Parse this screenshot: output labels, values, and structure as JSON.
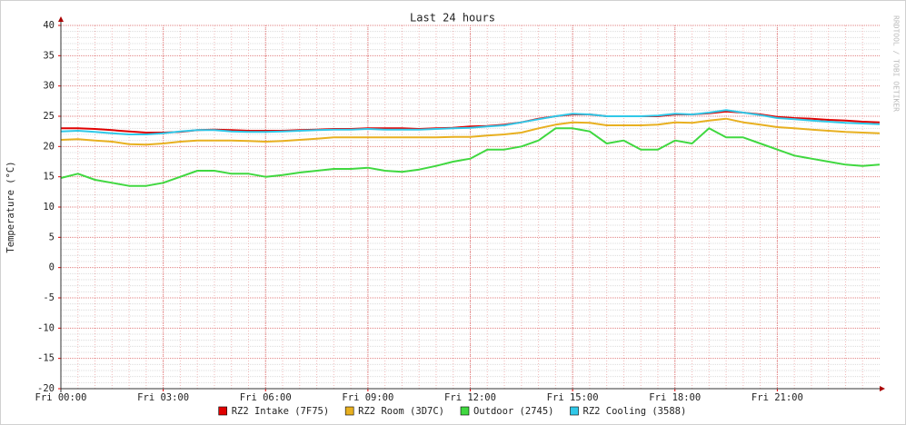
{
  "chart_data": {
    "type": "line",
    "title": "Last 24 hours",
    "y_label": "Temperature (°C)",
    "watermark": "RRDTOOL / TOBI OETIKER",
    "x": [
      0,
      0.5,
      1,
      1.5,
      2,
      2.5,
      3,
      3.5,
      4,
      4.5,
      5,
      5.5,
      6,
      6.5,
      7,
      7.5,
      8,
      8.5,
      9,
      9.5,
      10,
      10.5,
      11,
      11.5,
      12,
      12.5,
      13,
      13.5,
      14,
      14.5,
      15,
      15.5,
      16,
      16.5,
      17,
      17.5,
      18,
      18.5,
      19,
      19.5,
      20,
      20.5,
      21,
      21.5,
      22,
      22.5,
      23,
      23.5,
      24
    ],
    "xlim": [
      0,
      24
    ],
    "xticks": [
      {
        "value": 0,
        "label": "Fri 00:00"
      },
      {
        "value": 3,
        "label": "Fri 03:00"
      },
      {
        "value": 6,
        "label": "Fri 06:00"
      },
      {
        "value": 9,
        "label": "Fri 09:00"
      },
      {
        "value": 12,
        "label": "Fri 12:00"
      },
      {
        "value": 15,
        "label": "Fri 15:00"
      },
      {
        "value": 18,
        "label": "Fri 18:00"
      },
      {
        "value": 21,
        "label": "Fri 21:00"
      }
    ],
    "ylim": [
      -20,
      40
    ],
    "yticks": [
      40,
      35,
      30,
      25,
      20,
      15,
      10,
      5,
      0,
      -5,
      -10,
      -15,
      -20
    ],
    "grid": true,
    "series": [
      {
        "name": "RZ2 Intake (7F75)",
        "color": "#e00000",
        "values": [
          23,
          23,
          22.9,
          22.7,
          22.5,
          22.3,
          22.3,
          22.4,
          22.7,
          22.8,
          22.7,
          22.6,
          22.6,
          22.6,
          22.7,
          22.8,
          22.9,
          22.9,
          23,
          23,
          23,
          22.9,
          23,
          23.1,
          23.3,
          23.4,
          23.6,
          24,
          24.6,
          25,
          25.3,
          25.3,
          25,
          25,
          25,
          25,
          25.3,
          25.3,
          25.5,
          25.8,
          25.6,
          25.3,
          24.9,
          24.7,
          24.6,
          24.4,
          24.3,
          24.1,
          24
        ]
      },
      {
        "name": "RZ2 Room (3D7C)",
        "color": "#e8b020",
        "values": [
          21.1,
          21.2,
          21,
          20.8,
          20.4,
          20.3,
          20.5,
          20.8,
          21,
          21,
          21,
          20.9,
          20.8,
          20.9,
          21.1,
          21.3,
          21.5,
          21.5,
          21.5,
          21.5,
          21.5,
          21.5,
          21.5,
          21.6,
          21.6,
          21.8,
          22,
          22.3,
          23,
          23.6,
          24,
          23.9,
          23.5,
          23.5,
          23.5,
          23.6,
          24,
          23.9,
          24.3,
          24.6,
          24,
          23.6,
          23.2,
          23,
          22.8,
          22.6,
          22.4,
          22.3,
          22.2
        ]
      },
      {
        "name": "Outdoor (2745)",
        "color": "#40d840",
        "values": [
          14.8,
          15.5,
          14.5,
          14,
          13.5,
          13.5,
          14,
          15,
          16,
          16,
          15.5,
          15.5,
          15,
          15.3,
          15.7,
          16,
          16.3,
          16.3,
          16.5,
          16,
          15.8,
          16.2,
          16.8,
          17.5,
          18,
          19.5,
          19.5,
          20,
          21,
          23,
          23,
          22.5,
          20.5,
          21,
          19.5,
          19.5,
          21,
          20.5,
          23,
          21.5,
          21.5,
          20.5,
          19.5,
          18.5,
          18,
          17.5,
          17,
          16.8,
          17
        ]
      },
      {
        "name": "RZ2 Cooling (3588)",
        "color": "#30c8e8",
        "values": [
          22.5,
          22.6,
          22.4,
          22.2,
          22,
          22,
          22.2,
          22.5,
          22.7,
          22.7,
          22.5,
          22.4,
          22.4,
          22.5,
          22.6,
          22.7,
          22.8,
          22.8,
          22.9,
          22.8,
          22.8,
          22.8,
          22.9,
          23,
          23.1,
          23.3,
          23.5,
          24,
          24.5,
          25,
          25.4,
          25.3,
          25,
          25,
          25,
          25.1,
          25.4,
          25.3,
          25.6,
          26,
          25.6,
          25.2,
          24.7,
          24.5,
          24.3,
          24.1,
          23.9,
          23.8,
          23.7
        ]
      }
    ]
  }
}
